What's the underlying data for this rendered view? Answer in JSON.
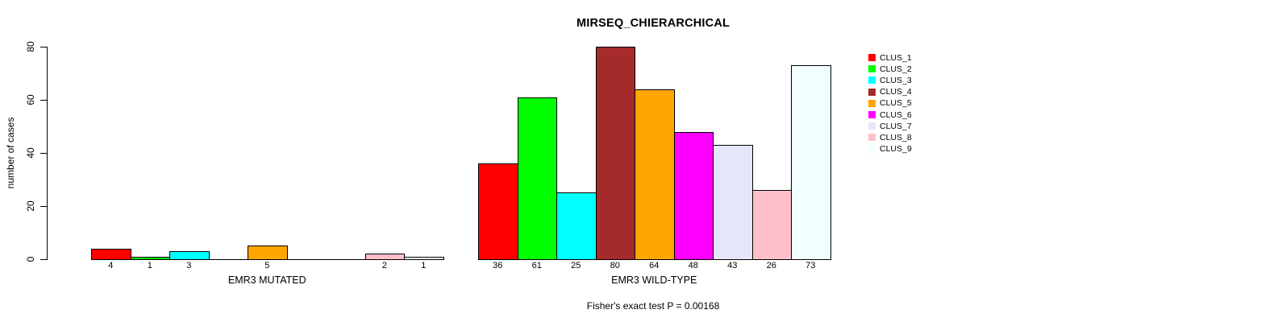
{
  "chart_data": {
    "type": "bar",
    "title": "MIRSEQ_CHIERARCHICAL",
    "ylabel": "number of cases",
    "xlabel": "",
    "ylim": [
      0,
      80
    ],
    "yticks": [
      0,
      20,
      40,
      60,
      80
    ],
    "grid": false,
    "legend_position": "top-right-inside",
    "background": "#FFFFFF",
    "categories": [
      "EMR3 MUTATED",
      "EMR3 WILD-TYPE"
    ],
    "series": [
      {
        "name": "CLUS_1",
        "color": "#FF0000",
        "values": [
          4,
          36
        ]
      },
      {
        "name": "CLUS_2",
        "color": "#00FF00",
        "values": [
          1,
          61
        ]
      },
      {
        "name": "CLUS_3",
        "color": "#00FFFF",
        "values": [
          3,
          25
        ]
      },
      {
        "name": "CLUS_4",
        "color": "#A52A2A",
        "values": [
          0,
          80
        ]
      },
      {
        "name": "CLUS_5",
        "color": "#FFA500",
        "values": [
          5,
          64
        ]
      },
      {
        "name": "CLUS_6",
        "color": "#FF00FF",
        "values": [
          0,
          48
        ]
      },
      {
        "name": "CLUS_7",
        "color": "#E6E6FA",
        "values": [
          0,
          43
        ]
      },
      {
        "name": "CLUS_8",
        "color": "#FFC0CB",
        "values": [
          2,
          26
        ]
      },
      {
        "name": "CLUS_9",
        "color": "#F0FFFF",
        "values": [
          1,
          73
        ]
      }
    ],
    "bar_value_labels_shown": true,
    "footnote": "Fisher's exact test P = 0.00168"
  }
}
